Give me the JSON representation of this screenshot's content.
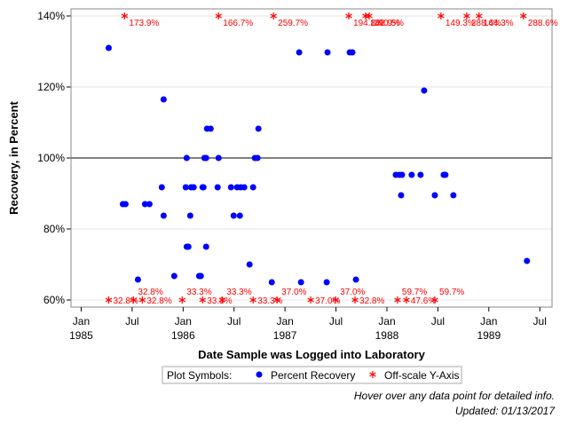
{
  "chart_data": {
    "type": "scatter",
    "x_label": "Date Sample was Logged into Laboratory",
    "y_label": "Recovery, in Percent",
    "xlim": [
      1984.9,
      1989.62
    ],
    "xticks": [
      {
        "value": 1985,
        "label": "Jan 1985"
      },
      {
        "value": 1985.5,
        "label": "Jul"
      },
      {
        "value": 1986,
        "label": "Jan 1986"
      },
      {
        "value": 1986.5,
        "label": "Jul"
      },
      {
        "value": 1987,
        "label": "Jan 1987"
      },
      {
        "value": 1987.5,
        "label": "Jul"
      },
      {
        "value": 1988,
        "label": "Jan 1988"
      },
      {
        "value": 1988.5,
        "label": "Jul"
      },
      {
        "value": 1989,
        "label": "Jan 1989"
      },
      {
        "value": 1989.5,
        "label": "Jul"
      }
    ],
    "ylim": [
      58,
      142
    ],
    "yticks": [
      {
        "value": 60,
        "label": "60%"
      },
      {
        "value": 80,
        "label": "80%"
      },
      {
        "value": 100,
        "label": "100%"
      },
      {
        "value": 120,
        "label": "120%"
      },
      {
        "value": 140,
        "label": "140%"
      }
    ],
    "grid": true,
    "reference_line": 100,
    "legend_title": "Plot Symbols:",
    "series": [
      {
        "name": "Percent Recovery",
        "color": "#0000ff",
        "x": [
          1985.27,
          1985.409,
          1985.435,
          1985.557,
          1985.626,
          1985.67,
          1985.791,
          1985.809,
          1985.809,
          1985.913,
          1986.026,
          1986.035,
          1986.035,
          1986.052,
          1986.07,
          1986.078,
          1986.104,
          1986.157,
          1986.174,
          1986.191,
          1986.2,
          1986.209,
          1986.226,
          1986.235,
          1986.27,
          1986.226,
          1986.339,
          1986.348,
          1986.47,
          1986.496,
          1986.53,
          1986.557,
          1986.565,
          1986.6,
          1986.652,
          1986.687,
          1986.704,
          1986.73,
          1986.739,
          1986.87,
          1987.139,
          1987.157,
          1987.409,
          1987.417,
          1987.635,
          1987.661,
          1987.696,
          1988.087,
          1988.122,
          1988.139,
          1988.148,
          1988.243,
          1988.33,
          1988.365,
          1988.47,
          1988.557,
          1988.574,
          1988.652,
          1989.374
        ],
        "values": [
          131,
          87,
          87,
          65.75,
          87,
          87,
          91.75,
          83.75,
          116.5,
          66.75,
          91.75,
          100,
          75,
          75,
          83.75,
          91.75,
          91.75,
          66.75,
          66.75,
          91.75,
          91.75,
          100,
          100,
          108.25,
          108.25,
          75,
          91.75,
          100,
          91.75,
          83.75,
          91.75,
          83.75,
          91.75,
          91.75,
          70,
          91.75,
          100,
          100,
          108.25,
          65,
          129.75,
          65,
          65,
          129.75,
          129.75,
          129.75,
          65.75,
          95.25,
          95.25,
          89.5,
          95.25,
          95.25,
          95.25,
          119,
          89.5,
          95.25,
          95.25,
          89.5,
          71
        ]
      },
      {
        "name": "Off-scale Y-Axis",
        "color": "#ff0000",
        "x": [
          1985.426,
          1986.348,
          1986.887,
          1987.626,
          1987.791,
          1987.826,
          1988.53,
          1988.783,
          1988.904,
          1989.339,
          1985.27,
          1985.513,
          1985.6,
          1985.991,
          1986.191,
          1986.383,
          1986.687,
          1986.922,
          1987.252,
          1987.496,
          1987.687,
          1988.104,
          1988.191,
          1988.47
        ],
        "values": [
          173.9,
          166.7,
          259.7,
          194.8,
          142.9,
          190.5,
          149.3,
          288.6,
          144.3,
          288.6,
          32.8,
          32.8,
          32.8,
          33.3,
          33.3,
          33.3,
          33.3,
          37.0,
          37.0,
          37.0,
          32.8,
          59.7,
          47.6,
          59.7
        ],
        "value_labels": [
          "173.9%",
          "166.7%",
          "259.7%",
          "194.8%",
          "142.9%",
          "190.5%",
          "149.3%",
          "288.6%",
          "144.3%",
          "288.6%",
          "32.8%",
          "32.8%",
          "32.8%",
          "33.3%",
          "33.3%",
          "33.3%",
          "33.3%",
          "37.0%",
          "37.0%",
          "37.0%",
          "32.8%",
          "59.7%",
          "47.6%",
          "59.7%"
        ]
      }
    ],
    "footnotes": [
      "Hover over any data point for detailed info.",
      "Updated: 01/13/2017"
    ]
  }
}
